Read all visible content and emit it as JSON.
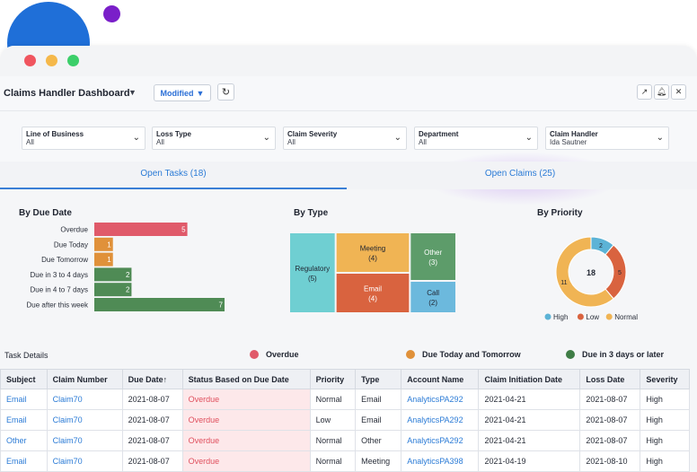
{
  "colors": {
    "overdue": "#e05a6a",
    "today_tomorrow": "#e0913a",
    "later": "#4f8b55",
    "link": "#2b7bd6",
    "accent": "#3a7ed6"
  },
  "header": {
    "title": "Claims Handler Dashboard",
    "modified_label": "Modified",
    "icons": [
      "external-link-icon",
      "bell-icon",
      "close-icon"
    ]
  },
  "filters": [
    {
      "label": "Line of Business",
      "value": "All"
    },
    {
      "label": "Loss Type",
      "value": "All"
    },
    {
      "label": "Claim Severity",
      "value": "All"
    },
    {
      "label": "Department",
      "value": "All"
    },
    {
      "label": "Claim Handler",
      "value": "Ida Sautner"
    }
  ],
  "tabs": [
    {
      "label": "Open Tasks (18)",
      "active": true
    },
    {
      "label": "Open Claims (25)",
      "active": false
    }
  ],
  "chart_data": [
    {
      "type": "bar",
      "title": "By Due Date",
      "orientation": "horizontal",
      "categories": [
        "Overdue",
        "Due Today",
        "Due Tomorrow",
        "Due in 3 to 4 days",
        "Due in 4 to 7 days",
        "Due after this week"
      ],
      "values": [
        5,
        1,
        1,
        2,
        2,
        7
      ],
      "colors": [
        "#e05a6a",
        "#e0913a",
        "#e0913a",
        "#4f8b55",
        "#4f8b55",
        "#4f8b55"
      ],
      "xlim": [
        0,
        7
      ]
    },
    {
      "type": "treemap",
      "title": "By Type",
      "items": [
        {
          "label": "Regulatory",
          "value": 5,
          "color": "#6fcfd2"
        },
        {
          "label": "Meeting",
          "value": 4,
          "color": "#f0b454"
        },
        {
          "label": "Email",
          "value": 4,
          "color": "#d9633f"
        },
        {
          "label": "Other",
          "value": 3,
          "color": "#5d9c6a"
        },
        {
          "label": "Call",
          "value": 2,
          "color": "#6cb9dd"
        }
      ]
    },
    {
      "type": "pie",
      "title": "By Priority",
      "total": 18,
      "series": [
        {
          "name": "High",
          "value": 2,
          "color": "#5cb3d6"
        },
        {
          "name": "Low",
          "value": 5,
          "color": "#d9633f"
        },
        {
          "name": "Normal",
          "value": 11,
          "color": "#f0b454"
        }
      ]
    }
  ],
  "task_details": {
    "title": "Task Details",
    "legend": [
      {
        "label": "Overdue",
        "color": "#e05a6a"
      },
      {
        "label": "Due Today and Tomorrow",
        "color": "#e0913a"
      },
      {
        "label": "Due in 3 days or later",
        "color": "#3f7d46"
      }
    ],
    "columns": [
      "Subject",
      "Claim Number",
      "Due Date↑",
      "Status Based on Due Date",
      "Priority",
      "Type",
      "Account Name",
      "Claim Initiation Date",
      "Loss Date",
      "Severity"
    ],
    "rows": [
      [
        "Email",
        "Claim70",
        "2021-08-07",
        "Overdue",
        "Normal",
        "Email",
        "AnalyticsPA292",
        "2021-04-21",
        "2021-08-07",
        "High"
      ],
      [
        "Email",
        "Claim70",
        "2021-08-07",
        "Overdue",
        "Low",
        "Email",
        "AnalyticsPA292",
        "2021-04-21",
        "2021-08-07",
        "High"
      ],
      [
        "Other",
        "Claim70",
        "2021-08-07",
        "Overdue",
        "Normal",
        "Other",
        "AnalyticsPA292",
        "2021-04-21",
        "2021-08-07",
        "High"
      ],
      [
        "Email",
        "Claim70",
        "2021-08-07",
        "Overdue",
        "Normal",
        "Meeting",
        "AnalyticsPA398",
        "2021-04-19",
        "2021-08-10",
        "High"
      ]
    ]
  }
}
